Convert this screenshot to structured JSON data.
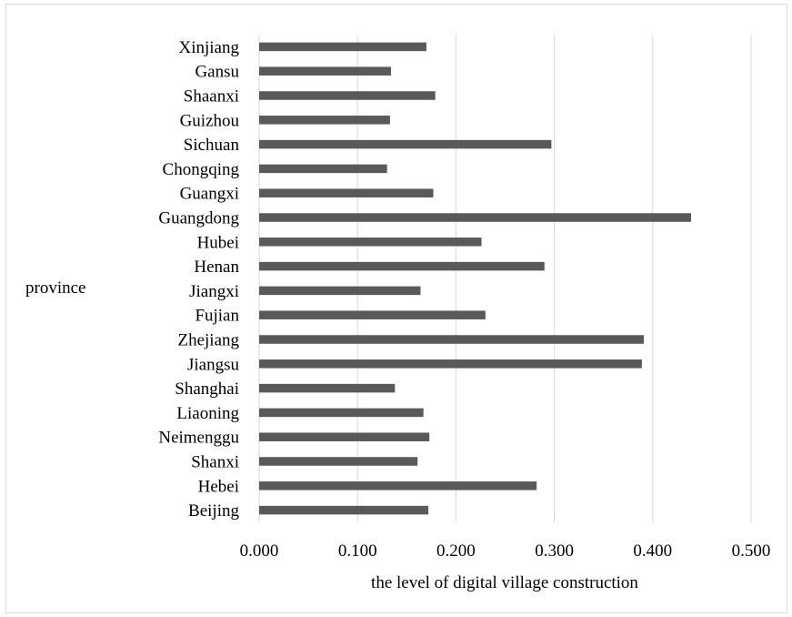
{
  "chart_data": {
    "type": "bar",
    "orientation": "horizontal",
    "categories": [
      "Xinjiang",
      "Gansu",
      "Shaanxi",
      "Guizhou",
      "Sichuan",
      "Chongqing",
      "Guangxi",
      "Guangdong",
      "Hubei",
      "Henan",
      "Jiangxi",
      "Fujian",
      "Zhejiang",
      "Jiangsu",
      "Shanghai",
      "Liaoning",
      "Neimenggu",
      "Shanxi",
      "Hebei",
      "Beijing"
    ],
    "values": [
      0.17,
      0.134,
      0.179,
      0.133,
      0.297,
      0.13,
      0.177,
      0.439,
      0.226,
      0.29,
      0.164,
      0.23,
      0.391,
      0.389,
      0.138,
      0.167,
      0.173,
      0.161,
      0.282,
      0.172
    ],
    "xlabel": "the level of digital village construction",
    "ylabel": "province",
    "xlim": [
      0,
      0.5
    ],
    "xticks": [
      "0.000",
      "0.100",
      "0.200",
      "0.300",
      "0.400",
      "0.500"
    ],
    "bar_color": "#595959",
    "grid_color": "#d9d9d9",
    "grid": "vertical"
  }
}
